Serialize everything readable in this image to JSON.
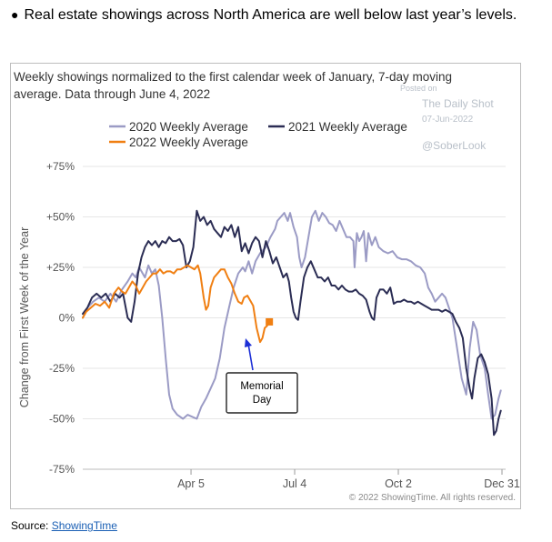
{
  "headline": "Real estate showings across North America are well below last year’s levels.",
  "source": {
    "label": "Source:",
    "link_text": "ShowingTime"
  },
  "chart_data": {
    "type": "line",
    "title_line1": "Weekly showings normalized to the first calendar week of January, 7-day moving",
    "title_line2": "average. Data through June 4, 2022",
    "ylabel": "Change from First Week of the Year",
    "xlabel": "",
    "ylim": [
      -75,
      75
    ],
    "yticks": [
      75,
      50,
      25,
      0,
      -25,
      -50,
      -75
    ],
    "ytick_labels": [
      "+75%",
      "+50%",
      "+25%",
      "0%",
      "-25%",
      "-50%",
      "-75%"
    ],
    "xlim": [
      1,
      365
    ],
    "xticks": [
      95,
      185,
      275,
      365
    ],
    "xtick_labels": [
      "Apr 5",
      "Jul 4",
      "Oct 2",
      "Dec 31"
    ],
    "legend_position": "top-left",
    "grid": "horizontal",
    "watermark": {
      "posted_on": "Posted on",
      "publisher": "The Daily Shot",
      "date": "07-Jun-2022",
      "handle": "@SoberLook"
    },
    "copyright": "© 2022 ShowingTime. All rights reserved.",
    "annotation": {
      "text_line1": "Memorial",
      "text_line2": "Day",
      "x": 150,
      "y": -2
    },
    "colors": {
      "2020": "#9b9bc5",
      "2021": "#2b2d54",
      "2022": "#f07f12"
    },
    "series": [
      {
        "name": "2020 Weekly Average",
        "key": "2020",
        "points": [
          [
            1,
            0
          ],
          [
            5,
            5
          ],
          [
            10,
            8
          ],
          [
            15,
            10
          ],
          [
            20,
            8
          ],
          [
            25,
            12
          ],
          [
            30,
            8
          ],
          [
            35,
            14
          ],
          [
            40,
            18
          ],
          [
            44,
            22
          ],
          [
            47,
            20
          ],
          [
            50,
            25
          ],
          [
            55,
            20
          ],
          [
            58,
            26
          ],
          [
            61,
            22
          ],
          [
            64,
            24
          ],
          [
            67,
            16
          ],
          [
            70,
            0
          ],
          [
            73,
            -20
          ],
          [
            76,
            -38
          ],
          [
            79,
            -45
          ],
          [
            83,
            -48
          ],
          [
            88,
            -50
          ],
          [
            92,
            -48
          ],
          [
            96,
            -49
          ],
          [
            100,
            -50
          ],
          [
            104,
            -44
          ],
          [
            108,
            -40
          ],
          [
            112,
            -35
          ],
          [
            116,
            -30
          ],
          [
            120,
            -20
          ],
          [
            124,
            -5
          ],
          [
            128,
            5
          ],
          [
            132,
            15
          ],
          [
            136,
            22
          ],
          [
            140,
            25
          ],
          [
            142,
            23
          ],
          [
            145,
            28
          ],
          [
            148,
            22
          ],
          [
            151,
            28
          ],
          [
            155,
            32
          ],
          [
            160,
            35
          ],
          [
            164,
            40
          ],
          [
            168,
            44
          ],
          [
            170,
            48
          ],
          [
            173,
            50
          ],
          [
            176,
            52
          ],
          [
            179,
            48
          ],
          [
            181,
            52
          ],
          [
            184,
            45
          ],
          [
            187,
            40
          ],
          [
            189,
            30
          ],
          [
            191,
            25
          ],
          [
            194,
            30
          ],
          [
            197,
            40
          ],
          [
            200,
            50
          ],
          [
            203,
            53
          ],
          [
            206,
            48
          ],
          [
            209,
            52
          ],
          [
            212,
            50
          ],
          [
            215,
            47
          ],
          [
            218,
            46
          ],
          [
            221,
            43
          ],
          [
            224,
            48
          ],
          [
            227,
            44
          ],
          [
            230,
            40
          ],
          [
            233,
            40
          ],
          [
            236,
            38
          ],
          [
            237,
            25
          ],
          [
            239,
            42
          ],
          [
            241,
            38
          ],
          [
            243,
            40
          ],
          [
            245,
            43
          ],
          [
            247,
            28
          ],
          [
            249,
            42
          ],
          [
            252,
            36
          ],
          [
            255,
            40
          ],
          [
            258,
            35
          ],
          [
            262,
            33
          ],
          [
            266,
            32
          ],
          [
            270,
            33
          ],
          [
            274,
            30
          ],
          [
            278,
            29
          ],
          [
            282,
            29
          ],
          [
            286,
            28
          ],
          [
            290,
            26
          ],
          [
            294,
            25
          ],
          [
            298,
            22
          ],
          [
            301,
            15
          ],
          [
            304,
            12
          ],
          [
            307,
            8
          ],
          [
            310,
            10
          ],
          [
            313,
            12
          ],
          [
            316,
            10
          ],
          [
            319,
            5
          ],
          [
            322,
            0
          ],
          [
            326,
            -15
          ],
          [
            330,
            -30
          ],
          [
            334,
            -38
          ],
          [
            337,
            -15
          ],
          [
            340,
            -2
          ],
          [
            343,
            -6
          ],
          [
            346,
            -18
          ],
          [
            350,
            -25
          ],
          [
            353,
            -38
          ],
          [
            356,
            -50
          ],
          [
            359,
            -48
          ],
          [
            362,
            -40
          ],
          [
            364,
            -36
          ]
        ]
      },
      {
        "name": "2021 Weekly Average",
        "key": "2021",
        "points": [
          [
            1,
            2
          ],
          [
            5,
            5
          ],
          [
            9,
            10
          ],
          [
            13,
            12
          ],
          [
            17,
            10
          ],
          [
            21,
            12
          ],
          [
            25,
            8
          ],
          [
            29,
            12
          ],
          [
            33,
            10
          ],
          [
            36,
            12
          ],
          [
            40,
            0
          ],
          [
            43,
            -2
          ],
          [
            46,
            8
          ],
          [
            49,
            22
          ],
          [
            52,
            30
          ],
          [
            55,
            35
          ],
          [
            58,
            38
          ],
          [
            61,
            36
          ],
          [
            64,
            38
          ],
          [
            67,
            35
          ],
          [
            70,
            38
          ],
          [
            73,
            37
          ],
          [
            76,
            40
          ],
          [
            79,
            38
          ],
          [
            82,
            38
          ],
          [
            85,
            39
          ],
          [
            88,
            36
          ],
          [
            91,
            25
          ],
          [
            94,
            28
          ],
          [
            97,
            35
          ],
          [
            100,
            53
          ],
          [
            103,
            48
          ],
          [
            106,
            50
          ],
          [
            109,
            46
          ],
          [
            112,
            48
          ],
          [
            115,
            44
          ],
          [
            118,
            42
          ],
          [
            121,
            40
          ],
          [
            124,
            45
          ],
          [
            127,
            43
          ],
          [
            130,
            46
          ],
          [
            133,
            40
          ],
          [
            136,
            45
          ],
          [
            139,
            33
          ],
          [
            142,
            37
          ],
          [
            145,
            32
          ],
          [
            148,
            37
          ],
          [
            151,
            40
          ],
          [
            154,
            38
          ],
          [
            157,
            30
          ],
          [
            160,
            38
          ],
          [
            163,
            33
          ],
          [
            166,
            27
          ],
          [
            169,
            30
          ],
          [
            172,
            25
          ],
          [
            175,
            20
          ],
          [
            178,
            22
          ],
          [
            180,
            18
          ],
          [
            182,
            10
          ],
          [
            184,
            3
          ],
          [
            186,
            0
          ],
          [
            188,
            -1
          ],
          [
            190,
            8
          ],
          [
            193,
            20
          ],
          [
            196,
            25
          ],
          [
            199,
            28
          ],
          [
            202,
            24
          ],
          [
            205,
            20
          ],
          [
            208,
            20
          ],
          [
            211,
            18
          ],
          [
            214,
            20
          ],
          [
            217,
            16
          ],
          [
            220,
            16
          ],
          [
            223,
            14
          ],
          [
            226,
            16
          ],
          [
            229,
            14
          ],
          [
            232,
            13
          ],
          [
            235,
            13
          ],
          [
            238,
            14
          ],
          [
            241,
            12
          ],
          [
            244,
            11
          ],
          [
            247,
            9
          ],
          [
            250,
            3
          ],
          [
            252,
            0
          ],
          [
            254,
            -1
          ],
          [
            256,
            10
          ],
          [
            259,
            14
          ],
          [
            262,
            14
          ],
          [
            265,
            12
          ],
          [
            268,
            15
          ],
          [
            271,
            7
          ],
          [
            274,
            8
          ],
          [
            277,
            8
          ],
          [
            280,
            9
          ],
          [
            283,
            8
          ],
          [
            286,
            8
          ],
          [
            289,
            7
          ],
          [
            292,
            8
          ],
          [
            295,
            7
          ],
          [
            298,
            6
          ],
          [
            301,
            5
          ],
          [
            304,
            4
          ],
          [
            307,
            4
          ],
          [
            310,
            4
          ],
          [
            313,
            3
          ],
          [
            316,
            4
          ],
          [
            319,
            3
          ],
          [
            322,
            2
          ],
          [
            325,
            -2
          ],
          [
            328,
            -5
          ],
          [
            331,
            -10
          ],
          [
            334,
            -25
          ],
          [
            337,
            -35
          ],
          [
            339,
            -40
          ],
          [
            341,
            -30
          ],
          [
            344,
            -20
          ],
          [
            347,
            -18
          ],
          [
            350,
            -22
          ],
          [
            353,
            -28
          ],
          [
            356,
            -40
          ],
          [
            358,
            -58
          ],
          [
            360,
            -56
          ],
          [
            362,
            -50
          ],
          [
            364,
            -46
          ]
        ]
      },
      {
        "name": "2022 Weekly Average",
        "key": "2022",
        "points": [
          [
            1,
            0
          ],
          [
            4,
            3
          ],
          [
            8,
            5
          ],
          [
            12,
            7
          ],
          [
            16,
            6
          ],
          [
            20,
            8
          ],
          [
            24,
            5
          ],
          [
            28,
            12
          ],
          [
            32,
            15
          ],
          [
            35,
            13
          ],
          [
            38,
            12
          ],
          [
            41,
            15
          ],
          [
            44,
            18
          ],
          [
            47,
            16
          ],
          [
            50,
            12
          ],
          [
            53,
            15
          ],
          [
            56,
            18
          ],
          [
            59,
            20
          ],
          [
            62,
            22
          ],
          [
            65,
            22
          ],
          [
            68,
            24
          ],
          [
            71,
            22
          ],
          [
            74,
            23
          ],
          [
            77,
            23
          ],
          [
            80,
            22
          ],
          [
            83,
            24
          ],
          [
            86,
            24
          ],
          [
            89,
            25
          ],
          [
            92,
            26
          ],
          [
            95,
            25
          ],
          [
            98,
            24
          ],
          [
            101,
            26
          ],
          [
            103,
            22
          ],
          [
            106,
            10
          ],
          [
            108,
            4
          ],
          [
            110,
            6
          ],
          [
            112,
            15
          ],
          [
            115,
            20
          ],
          [
            118,
            22
          ],
          [
            121,
            24
          ],
          [
            124,
            24
          ],
          [
            127,
            20
          ],
          [
            130,
            17
          ],
          [
            133,
            12
          ],
          [
            136,
            8
          ],
          [
            139,
            7
          ],
          [
            141,
            10
          ],
          [
            144,
            11
          ],
          [
            147,
            8
          ],
          [
            149,
            6
          ],
          [
            152,
            -5
          ],
          [
            155,
            -12
          ],
          [
            157,
            -10
          ],
          [
            159,
            -5
          ],
          [
            161,
            -4
          ],
          [
            163,
            -2
          ]
        ]
      }
    ]
  }
}
